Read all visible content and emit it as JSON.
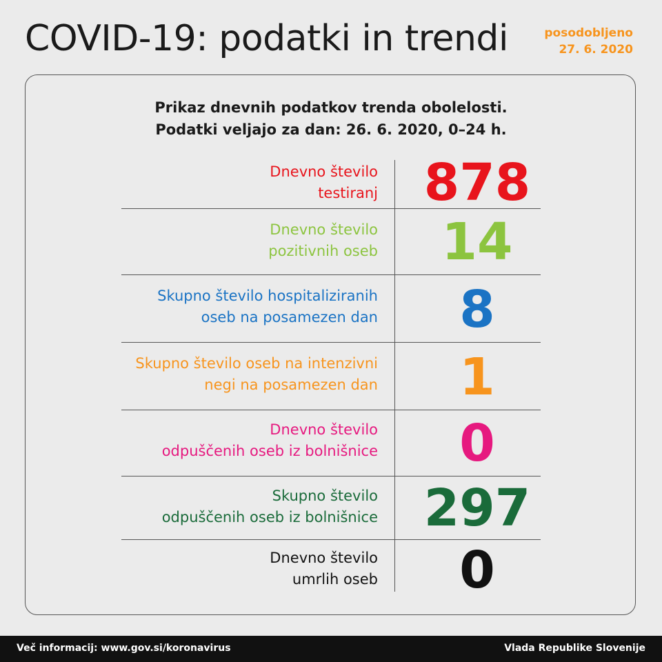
{
  "header": {
    "title": "COVID-19: podatki in trendi",
    "updated_line1": "posodobljeno",
    "updated_line2": "27. 6. 2020"
  },
  "card": {
    "subtitle_line1": "Prikaz dnevnih podatkov trenda obolelosti.",
    "subtitle_line2": "Podatki veljajo za dan: 26. 6. 2020, 0–24 h."
  },
  "stats": [
    {
      "label_line1": "Dnevno število",
      "label_line2": "testiranj",
      "value": "878",
      "color": "#e8141c"
    },
    {
      "label_line1": "Dnevno število",
      "label_line2": "pozitivnih oseb",
      "value": "14",
      "color": "#8cc43f"
    },
    {
      "label_line1": "Skupno število hospitaliziranih",
      "label_line2": "oseb na posamezen dan",
      "value": "8",
      "color": "#1a73c4"
    },
    {
      "label_line1": "Skupno število oseb na intenzivni",
      "label_line2": "negi na posamezen dan",
      "value": "1",
      "color": "#f7941d"
    },
    {
      "label_line1": "Dnevno število",
      "label_line2": "odpuščenih oseb iz bolnišnice",
      "value": "0",
      "color": "#e6197f"
    },
    {
      "label_line1": "Skupno število",
      "label_line2": "odpuščenih oseb iz bolnišnice",
      "value": "297",
      "color": "#1a6b3a"
    },
    {
      "label_line1": "Dnevno število",
      "label_line2": "umrlih oseb",
      "value": "0",
      "color": "#111111"
    }
  ],
  "footer": {
    "more_info": "Več informacij: www.gov.si/koronavirus",
    "source": "Vlada Republike Slovenije"
  }
}
